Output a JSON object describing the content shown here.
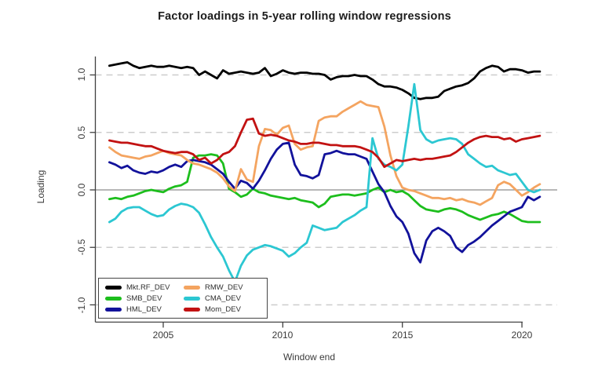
{
  "chart_data": {
    "type": "line",
    "title": "Factor loadings in 5-year rolling window regressions",
    "xlabel": "Window end",
    "ylabel": "Loading",
    "x_tick_labels": [
      "2005",
      "2010",
      "2015",
      "2020"
    ],
    "x_ticks": [
      2005,
      2010,
      2015,
      2020
    ],
    "y_tick_labels": [
      "1.0",
      "0.5",
      "0.0",
      "-0.5",
      "-1.0"
    ],
    "y_ticks": [
      1.0,
      0.5,
      0.0,
      -0.5,
      -1.0
    ],
    "xlim": [
      2002.5,
      2021.4
    ],
    "ylim": [
      -1.15,
      1.18
    ],
    "grid": "dashed horizontal gridlines at -1.0, -0.5, 0.5, 1.0; solid gray line at 0",
    "zero_line": true,
    "legend_position": "bottom-left",
    "x_start": 2002.75,
    "x_step": 0.25,
    "series": [
      {
        "name": "Mkt.RF_DEV",
        "color": "#000000",
        "values": [
          1.08,
          1.09,
          1.1,
          1.11,
          1.08,
          1.06,
          1.07,
          1.08,
          1.07,
          1.07,
          1.08,
          1.07,
          1.06,
          1.07,
          1.06,
          1.0,
          1.03,
          1.0,
          0.97,
          1.04,
          1.01,
          1.02,
          1.03,
          1.02,
          1.01,
          1.02,
          1.06,
          0.99,
          1.01,
          1.04,
          1.02,
          1.01,
          1.02,
          1.02,
          1.01,
          1.01,
          1.0,
          0.96,
          0.98,
          0.99,
          0.99,
          1.0,
          0.99,
          0.99,
          0.96,
          0.92,
          0.9,
          0.9,
          0.89,
          0.87,
          0.84,
          0.8,
          0.79,
          0.8,
          0.8,
          0.81,
          0.86,
          0.88,
          0.9,
          0.91,
          0.93,
          0.97,
          1.03,
          1.06,
          1.08,
          1.07,
          1.03,
          1.05,
          1.05,
          1.04,
          1.02,
          1.03,
          1.03
        ]
      },
      {
        "name": "SMB_DEV",
        "color": "#1dbe1d",
        "values": [
          -0.08,
          -0.07,
          -0.08,
          -0.06,
          -0.05,
          -0.03,
          -0.01,
          0.0,
          -0.01,
          -0.02,
          0.01,
          0.03,
          0.04,
          0.07,
          0.28,
          0.3,
          0.3,
          0.31,
          0.3,
          0.23,
          0.01,
          -0.02,
          -0.06,
          -0.04,
          0.01,
          -0.02,
          -0.03,
          -0.05,
          -0.06,
          -0.07,
          -0.08,
          -0.07,
          -0.09,
          -0.1,
          -0.11,
          -0.15,
          -0.12,
          -0.06,
          -0.05,
          -0.04,
          -0.04,
          -0.05,
          -0.04,
          -0.03,
          0.0,
          0.02,
          -0.02,
          0.0,
          -0.02,
          -0.01,
          -0.04,
          -0.09,
          -0.14,
          -0.17,
          -0.18,
          -0.19,
          -0.17,
          -0.16,
          -0.17,
          -0.19,
          -0.22,
          -0.24,
          -0.26,
          -0.24,
          -0.22,
          -0.21,
          -0.19,
          -0.21,
          -0.24,
          -0.27,
          -0.28,
          -0.28,
          -0.28
        ]
      },
      {
        "name": "HML_DEV",
        "color": "#12129b",
        "values": [
          0.24,
          0.22,
          0.19,
          0.21,
          0.17,
          0.15,
          0.14,
          0.16,
          0.15,
          0.17,
          0.2,
          0.22,
          0.2,
          0.25,
          0.26,
          0.25,
          0.24,
          0.22,
          0.18,
          0.14,
          0.07,
          0.01,
          0.08,
          0.06,
          0.01,
          0.08,
          0.17,
          0.27,
          0.35,
          0.4,
          0.41,
          0.22,
          0.13,
          0.12,
          0.1,
          0.13,
          0.31,
          0.32,
          0.34,
          0.32,
          0.31,
          0.31,
          0.29,
          0.27,
          0.16,
          0.05,
          -0.02,
          -0.14,
          -0.23,
          -0.28,
          -0.38,
          -0.55,
          -0.63,
          -0.44,
          -0.36,
          -0.33,
          -0.36,
          -0.4,
          -0.5,
          -0.54,
          -0.48,
          -0.45,
          -0.41,
          -0.36,
          -0.31,
          -0.27,
          -0.23,
          -0.19,
          -0.17,
          -0.15,
          -0.06,
          -0.09,
          -0.06
        ]
      },
      {
        "name": "RMW_DEV",
        "color": "#f4a460",
        "values": [
          0.37,
          0.33,
          0.3,
          0.29,
          0.28,
          0.27,
          0.29,
          0.3,
          0.32,
          0.34,
          0.32,
          0.31,
          0.3,
          0.26,
          0.23,
          0.22,
          0.2,
          0.18,
          0.15,
          0.1,
          0.03,
          -0.01,
          0.18,
          0.09,
          0.07,
          0.38,
          0.53,
          0.52,
          0.48,
          0.54,
          0.56,
          0.4,
          0.35,
          0.37,
          0.38,
          0.6,
          0.63,
          0.64,
          0.64,
          0.68,
          0.71,
          0.74,
          0.77,
          0.74,
          0.73,
          0.72,
          0.55,
          0.3,
          0.12,
          0.02,
          0.0,
          -0.01,
          -0.03,
          -0.05,
          -0.07,
          -0.07,
          -0.08,
          -0.07,
          -0.09,
          -0.08,
          -0.1,
          -0.11,
          -0.13,
          -0.1,
          -0.07,
          0.04,
          0.07,
          0.05,
          0.0,
          -0.05,
          -0.02,
          0.02,
          0.05
        ]
      },
      {
        "name": "CMA_DEV",
        "color": "#2cc7d2",
        "values": [
          -0.28,
          -0.25,
          -0.19,
          -0.16,
          -0.15,
          -0.15,
          -0.18,
          -0.21,
          -0.23,
          -0.22,
          -0.17,
          -0.14,
          -0.12,
          -0.13,
          -0.15,
          -0.2,
          -0.3,
          -0.41,
          -0.5,
          -0.58,
          -0.7,
          -0.8,
          -0.66,
          -0.57,
          -0.52,
          -0.5,
          -0.48,
          -0.49,
          -0.51,
          -0.53,
          -0.58,
          -0.55,
          -0.5,
          -0.46,
          -0.31,
          -0.33,
          -0.35,
          -0.34,
          -0.33,
          -0.28,
          -0.25,
          -0.22,
          -0.18,
          -0.15,
          0.45,
          0.27,
          0.22,
          0.2,
          0.17,
          0.22,
          0.55,
          0.92,
          0.52,
          0.44,
          0.41,
          0.43,
          0.44,
          0.45,
          0.44,
          0.4,
          0.31,
          0.27,
          0.23,
          0.2,
          0.21,
          0.17,
          0.15,
          0.13,
          0.14,
          0.07,
          0.0,
          -0.02,
          0.0
        ]
      },
      {
        "name": "Mom_DEV",
        "color": "#c21212",
        "values": [
          0.43,
          0.42,
          0.41,
          0.41,
          0.4,
          0.39,
          0.38,
          0.38,
          0.36,
          0.34,
          0.33,
          0.32,
          0.33,
          0.33,
          0.31,
          0.26,
          0.28,
          0.23,
          0.26,
          0.31,
          0.33,
          0.38,
          0.5,
          0.61,
          0.62,
          0.49,
          0.47,
          0.48,
          0.47,
          0.45,
          0.43,
          0.42,
          0.4,
          0.4,
          0.41,
          0.41,
          0.4,
          0.39,
          0.39,
          0.38,
          0.38,
          0.38,
          0.37,
          0.35,
          0.33,
          0.28,
          0.2,
          0.23,
          0.26,
          0.25,
          0.26,
          0.27,
          0.26,
          0.27,
          0.27,
          0.28,
          0.29,
          0.3,
          0.33,
          0.37,
          0.41,
          0.44,
          0.46,
          0.47,
          0.46,
          0.46,
          0.44,
          0.45,
          0.42,
          0.44,
          0.45,
          0.46,
          0.47
        ]
      }
    ],
    "style": {
      "grid_color": "#cccccc",
      "zero_line_color": "#8c8c8c",
      "axis_color": "#404040",
      "tick_label_color": "#3a3a3a",
      "background": "#ffffff",
      "line_width": 2.8
    }
  }
}
